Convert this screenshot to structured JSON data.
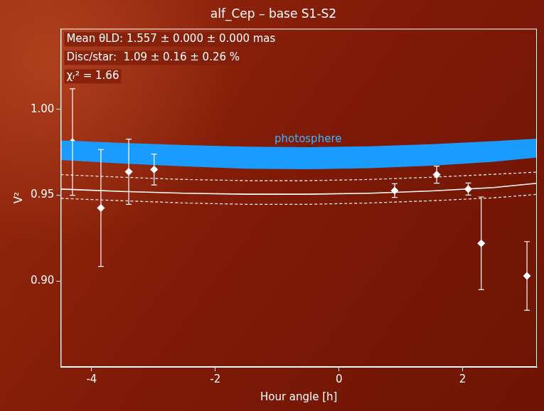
{
  "chart_data": {
    "type": "scatter",
    "title": "alf_Cep – base S1-S2",
    "x_label": "Hour angle [h]",
    "y_label": "V²",
    "annotations": [
      "Mean θLD: 1.557 ± 0.000 ± 0.000 mas",
      "Disc/star:  1.09 ± 0.16 ± 0.26 %",
      "χᵣ² = 1.66"
    ],
    "xlim": [
      -4.5,
      3.2
    ],
    "xticks": [
      -4,
      -2,
      0,
      2
    ],
    "ylim": [
      0.85,
      1.047
    ],
    "yticks": [
      {
        "value": 0.9,
        "label": "0.90"
      },
      {
        "value": 0.95,
        "label": "0.95"
      },
      {
        "value": 1.0,
        "label": "1.00"
      }
    ],
    "grid": false,
    "series": [
      {
        "name": "photosphere",
        "type": "band",
        "color": "#1a9cff",
        "x": [
          -4.5,
          -3.5,
          -2.5,
          -1.5,
          -0.5,
          0.5,
          1.5,
          2.5,
          3.2
        ],
        "upper": [
          0.9819,
          0.9805,
          0.9792,
          0.9783,
          0.978,
          0.9785,
          0.9798,
          0.9815,
          0.983
        ],
        "lower": [
          0.9705,
          0.9685,
          0.9668,
          0.9655,
          0.9652,
          0.9658,
          0.9672,
          0.9695,
          0.972
        ]
      },
      {
        "type": "line",
        "line_style": "solid",
        "color": "#ffffff",
        "x": [
          -4.5,
          -3.5,
          -2.5,
          -1.5,
          -0.5,
          0.5,
          1.5,
          2.5,
          3.2
        ],
        "values": [
          0.9536,
          0.9522,
          0.9512,
          0.9506,
          0.9506,
          0.9512,
          0.9525,
          0.9545,
          0.957
        ]
      },
      {
        "type": "line",
        "line_style": "dashed",
        "color": "#ffffff",
        "x": [
          -4.5,
          -3.5,
          -2.5,
          -1.5,
          -0.5,
          0.5,
          1.5,
          2.5,
          3.2
        ],
        "values": [
          0.962,
          0.9605,
          0.9592,
          0.9585,
          0.9585,
          0.9592,
          0.9605,
          0.9622,
          0.9635
        ]
      },
      {
        "type": "line",
        "line_style": "dashed",
        "color": "#ffffff",
        "x": [
          -4.5,
          -3.5,
          -2.5,
          -1.5,
          -0.5,
          0.5,
          1.5,
          2.5,
          3.2
        ],
        "values": [
          0.9482,
          0.9468,
          0.9455,
          0.9447,
          0.9447,
          0.9455,
          0.9468,
          0.9485,
          0.9505
        ]
      },
      {
        "type": "scatter",
        "marker": "diamond",
        "color": "#ffffff",
        "x": [
          -4.31,
          -3.85,
          -3.4,
          -2.99,
          0.9,
          1.58,
          2.09,
          2.3,
          3.04
        ],
        "values": [
          0.981,
          0.9426,
          0.9637,
          0.965,
          0.9527,
          0.962,
          0.9536,
          0.922,
          0.903
        ],
        "errors": [
          0.031,
          0.034,
          0.019,
          0.009,
          0.004,
          0.005,
          0.0035,
          0.027,
          0.02
        ]
      }
    ]
  }
}
